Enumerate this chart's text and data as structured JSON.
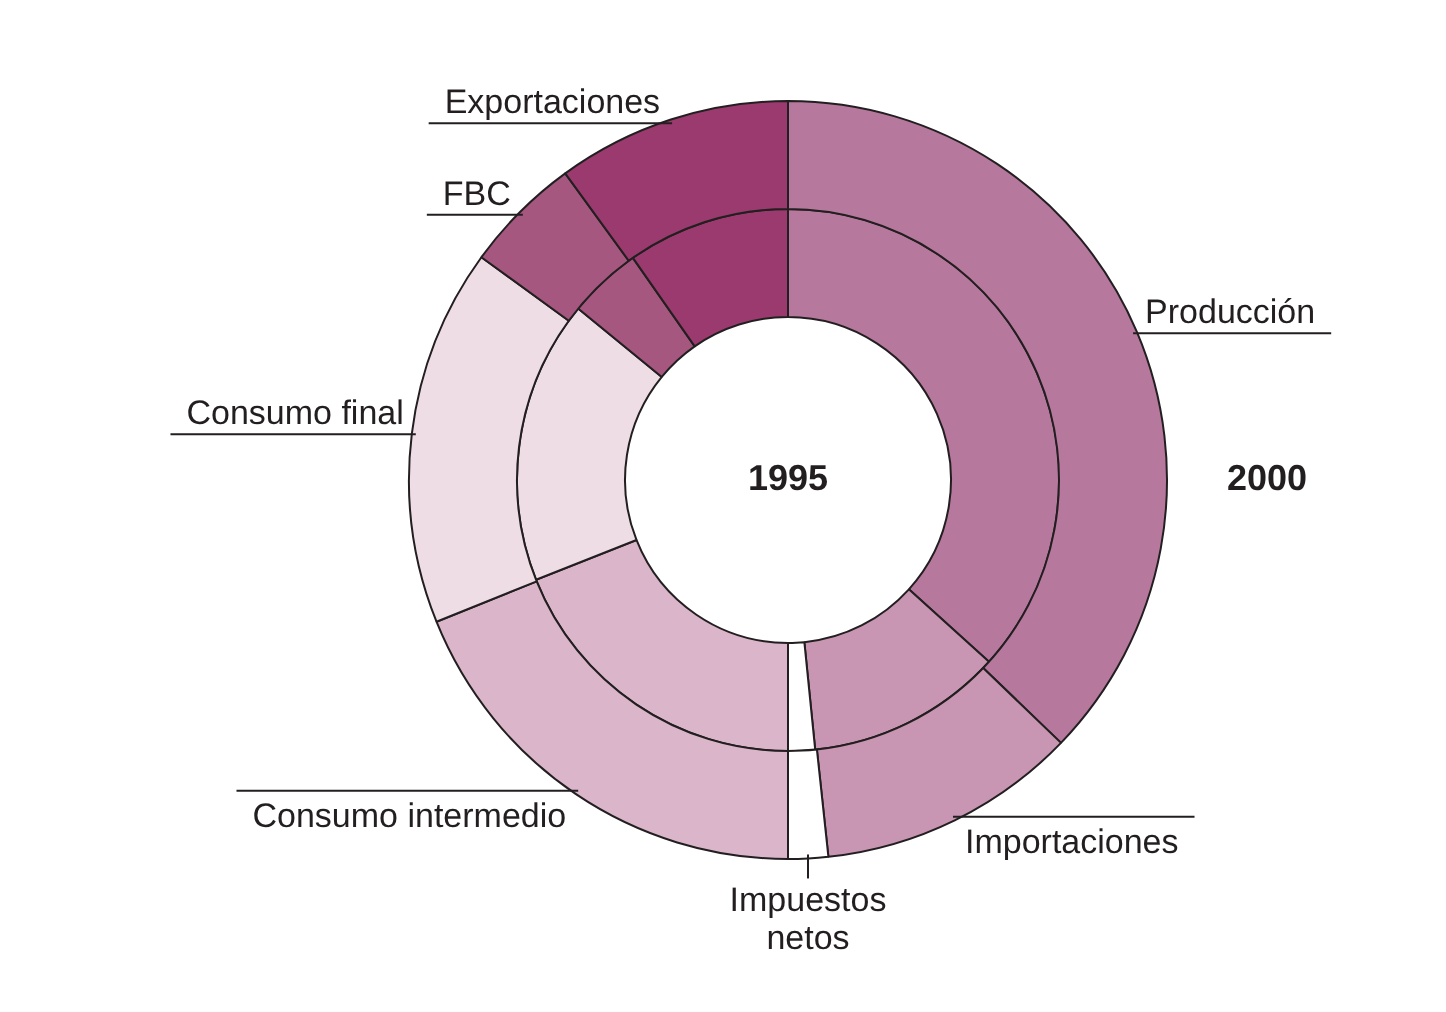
{
  "chart_data": {
    "type": "donut",
    "categories": [
      "Producción",
      "Importaciones",
      "Impuestos netos",
      "Consumo intermedio",
      "Consumo final",
      "FBC",
      "Exportaciones"
    ],
    "colors": [
      "#b7789e",
      "#c896b2",
      "#ffffff",
      "#dbb6cb",
      "#efdde6",
      "#a5577f",
      "#9b3a6e"
    ],
    "series": [
      {
        "name": "1995",
        "values": [
          36.7,
          11.7,
          1.6,
          19.0,
          16.9,
          4.4,
          9.7
        ]
      },
      {
        "name": "2000",
        "values": [
          37.2,
          11.1,
          1.7,
          18.9,
          16.1,
          5.0,
          10.0
        ]
      }
    ]
  }
}
